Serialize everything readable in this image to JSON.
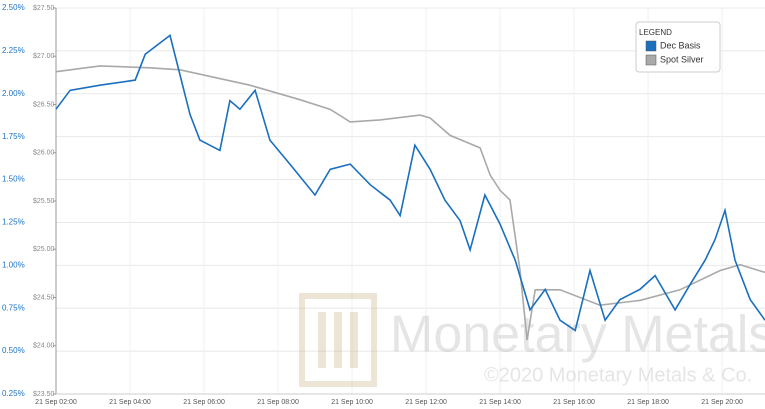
{
  "chart_data": {
    "type": "line",
    "legend_title": "LEGEND",
    "legend_position": "upper right",
    "watermark": "Monetary Metals",
    "watermark_copyright": "©2020 Monetary Metals & Co.",
    "grid": true,
    "xlim": [
      2,
      21.16
    ],
    "xticks": [
      {
        "value": 2,
        "label": "21 Sep 02:00"
      },
      {
        "value": 4,
        "label": "21 Sep 04:00"
      },
      {
        "value": 6,
        "label": "21 Sep 06:00"
      },
      {
        "value": 8,
        "label": "21 Sep 08:00"
      },
      {
        "value": 10,
        "label": "21 Sep 10:00"
      },
      {
        "value": 12,
        "label": "21 Sep 12:00"
      },
      {
        "value": 14,
        "label": "21 Sep 14:00"
      },
      {
        "value": 16,
        "label": "21 Sep 16:00"
      },
      {
        "value": 18,
        "label": "21 Sep 18:00"
      },
      {
        "value": 20,
        "label": "21 Sep 20:00"
      }
    ],
    "ylim": [
      0.25,
      2.5
    ],
    "yticks": [
      {
        "value": 0.25,
        "label": "0.25%"
      },
      {
        "value": 0.5,
        "label": "0.50%"
      },
      {
        "value": 0.75,
        "label": "0.75%"
      },
      {
        "value": 1,
        "label": "1.00%"
      },
      {
        "value": 1.25,
        "label": "1.25%"
      },
      {
        "value": 1.5,
        "label": "1.50%"
      },
      {
        "value": 1.75,
        "label": "1.75%"
      },
      {
        "value": 2,
        "label": "2.00%"
      },
      {
        "value": 2.25,
        "label": "2.25%"
      },
      {
        "value": 2.5,
        "label": "2.50%"
      }
    ],
    "y2lim": [
      23.5,
      27.5
    ],
    "y2ticks": [
      {
        "value": 23.5,
        "label": "$23.50"
      },
      {
        "value": 24,
        "label": "$24.00"
      },
      {
        "value": 24.5,
        "label": "$24.50"
      },
      {
        "value": 25,
        "label": "$25.00"
      },
      {
        "value": 25.5,
        "label": "$25.50"
      },
      {
        "value": 26,
        "label": "$26.00"
      },
      {
        "value": 26.5,
        "label": "$26.50"
      },
      {
        "value": 27,
        "label": "$27.00"
      },
      {
        "value": 27.5,
        "label": "$27.50"
      }
    ],
    "series": [
      {
        "name": "Dec Basis",
        "color": "#1a6fbf",
        "axis": "y",
        "x": [
          2.0,
          2.38,
          3.19,
          4.14,
          4.41,
          5.08,
          5.35,
          5.62,
          5.89,
          6.43,
          6.7,
          6.97,
          7.38,
          7.78,
          8.32,
          9.0,
          9.41,
          9.95,
          10.49,
          11.03,
          11.3,
          11.7,
          12.11,
          12.51,
          12.92,
          13.19,
          13.59,
          14.0,
          14.41,
          14.81,
          15.22,
          15.62,
          16.03,
          16.43,
          16.84,
          17.24,
          17.78,
          18.19,
          18.73,
          19.14,
          19.54,
          19.81,
          20.08,
          20.35,
          20.76,
          21.16
        ],
        "values": [
          1.91,
          2.02,
          2.05,
          2.08,
          2.23,
          2.34,
          2.11,
          1.88,
          1.73,
          1.67,
          1.96,
          1.91,
          2.02,
          1.73,
          1.59,
          1.41,
          1.56,
          1.59,
          1.47,
          1.38,
          1.29,
          1.7,
          1.56,
          1.38,
          1.26,
          1.09,
          1.41,
          1.24,
          1.03,
          0.74,
          0.86,
          0.68,
          0.62,
          0.97,
          0.68,
          0.8,
          0.86,
          0.94,
          0.74,
          0.89,
          1.03,
          1.15,
          1.32,
          1.03,
          0.8,
          0.68
        ]
      },
      {
        "name": "Spot Silver",
        "color": "#a9a9a9",
        "axis": "y2",
        "x": [
          2.0,
          3.19,
          4.54,
          5.35,
          7.24,
          8.59,
          9.41,
          9.95,
          10.76,
          11.84,
          12.11,
          12.65,
          13.46,
          13.73,
          14.0,
          14.27,
          14.54,
          14.73,
          14.95,
          15.62,
          16.7,
          17.78,
          18.86,
          19.95,
          20.49,
          21.16
        ],
        "values": [
          26.84,
          26.9,
          26.88,
          26.86,
          26.7,
          26.55,
          26.45,
          26.32,
          26.34,
          26.39,
          26.36,
          26.18,
          26.05,
          25.77,
          25.61,
          25.51,
          24.78,
          24.06,
          24.58,
          24.58,
          24.42,
          24.47,
          24.58,
          24.78,
          24.84,
          24.76
        ]
      }
    ]
  }
}
